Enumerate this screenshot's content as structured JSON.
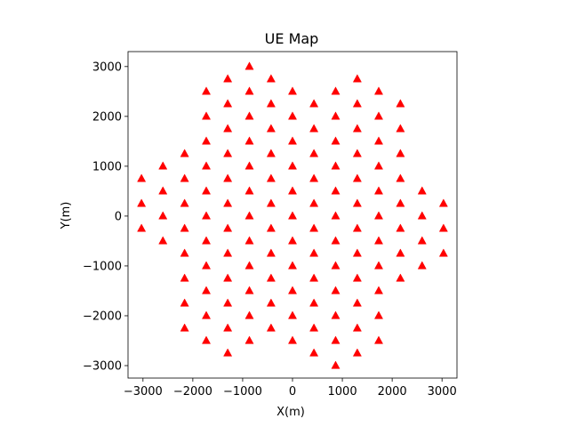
{
  "chart_data": {
    "type": "scatter",
    "title": "UE Map",
    "xlabel": "X(m)",
    "ylabel": "Y(m)",
    "xlim": [
      -3300,
      3300
    ],
    "ylim": [
      -3250,
      3300
    ],
    "xticks": [
      -3000,
      -2000,
      -1000,
      0,
      1000,
      2000,
      3000
    ],
    "xtick_labels": [
      "−3000",
      "−2000",
      "−1000",
      "0",
      "1000",
      "2000",
      "3000"
    ],
    "yticks": [
      -3000,
      -2000,
      -1000,
      0,
      1000,
      2000,
      3000
    ],
    "ytick_labels": [
      "−3000",
      "−2000",
      "−1000",
      "0",
      "1000",
      "2000",
      "3000"
    ],
    "grid": false,
    "marker": "triangle-up",
    "marker_color": "#ff0000",
    "series": [
      {
        "points": [
          [
            -3030,
            750
          ],
          [
            -3030,
            250
          ],
          [
            -3030,
            -250
          ],
          [
            -2600,
            1000
          ],
          [
            -2600,
            500
          ],
          [
            -2600,
            0
          ],
          [
            -2600,
            -500
          ],
          [
            -2165,
            1250
          ],
          [
            -2165,
            750
          ],
          [
            -2165,
            250
          ],
          [
            -2165,
            -250
          ],
          [
            -2165,
            -750
          ],
          [
            -2165,
            -1250
          ],
          [
            -2165,
            -1750
          ],
          [
            -2165,
            -2250
          ],
          [
            -1730,
            2500
          ],
          [
            -1730,
            2000
          ],
          [
            -1730,
            1500
          ],
          [
            -1730,
            1000
          ],
          [
            -1730,
            500
          ],
          [
            -1730,
            0
          ],
          [
            -1730,
            -500
          ],
          [
            -1730,
            -1000
          ],
          [
            -1730,
            -1500
          ],
          [
            -1730,
            -2000
          ],
          [
            -1730,
            -2500
          ],
          [
            -1300,
            2750
          ],
          [
            -1300,
            2250
          ],
          [
            -1300,
            1750
          ],
          [
            -1300,
            1250
          ],
          [
            -1300,
            750
          ],
          [
            -1300,
            250
          ],
          [
            -1300,
            -250
          ],
          [
            -1300,
            -750
          ],
          [
            -1300,
            -1250
          ],
          [
            -1300,
            -1750
          ],
          [
            -1300,
            -2250
          ],
          [
            -1300,
            -2750
          ],
          [
            -865,
            3000
          ],
          [
            -865,
            2500
          ],
          [
            -865,
            2000
          ],
          [
            -865,
            1500
          ],
          [
            -865,
            1000
          ],
          [
            -865,
            500
          ],
          [
            -865,
            0
          ],
          [
            -865,
            -500
          ],
          [
            -865,
            -1000
          ],
          [
            -865,
            -1500
          ],
          [
            -865,
            -2000
          ],
          [
            -865,
            -2500
          ],
          [
            -430,
            2750
          ],
          [
            -430,
            2250
          ],
          [
            -430,
            1750
          ],
          [
            -430,
            1250
          ],
          [
            -430,
            750
          ],
          [
            -430,
            250
          ],
          [
            -430,
            -250
          ],
          [
            -430,
            -750
          ],
          [
            -430,
            -1250
          ],
          [
            -430,
            -1750
          ],
          [
            -430,
            -2250
          ],
          [
            0,
            2500
          ],
          [
            0,
            2000
          ],
          [
            0,
            1500
          ],
          [
            0,
            1000
          ],
          [
            0,
            500
          ],
          [
            0,
            0
          ],
          [
            0,
            -500
          ],
          [
            0,
            -1000
          ],
          [
            0,
            -1500
          ],
          [
            0,
            -2000
          ],
          [
            0,
            -2500
          ],
          [
            430,
            2250
          ],
          [
            430,
            1750
          ],
          [
            430,
            1250
          ],
          [
            430,
            750
          ],
          [
            430,
            250
          ],
          [
            430,
            -250
          ],
          [
            430,
            -750
          ],
          [
            430,
            -1250
          ],
          [
            430,
            -1750
          ],
          [
            430,
            -2250
          ],
          [
            430,
            -2750
          ],
          [
            865,
            2500
          ],
          [
            865,
            2000
          ],
          [
            865,
            1500
          ],
          [
            865,
            1000
          ],
          [
            865,
            500
          ],
          [
            865,
            0
          ],
          [
            865,
            -500
          ],
          [
            865,
            -1000
          ],
          [
            865,
            -1500
          ],
          [
            865,
            -2000
          ],
          [
            865,
            -2500
          ],
          [
            865,
            -3000
          ],
          [
            1300,
            2750
          ],
          [
            1300,
            2250
          ],
          [
            1300,
            1750
          ],
          [
            1300,
            1250
          ],
          [
            1300,
            750
          ],
          [
            1300,
            250
          ],
          [
            1300,
            -250
          ],
          [
            1300,
            -750
          ],
          [
            1300,
            -1250
          ],
          [
            1300,
            -1750
          ],
          [
            1300,
            -2250
          ],
          [
            1300,
            -2750
          ],
          [
            1730,
            2500
          ],
          [
            1730,
            2000
          ],
          [
            1730,
            1500
          ],
          [
            1730,
            1000
          ],
          [
            1730,
            500
          ],
          [
            1730,
            0
          ],
          [
            1730,
            -500
          ],
          [
            1730,
            -1000
          ],
          [
            1730,
            -1500
          ],
          [
            1730,
            -2000
          ],
          [
            1730,
            -2500
          ],
          [
            2165,
            2250
          ],
          [
            2165,
            1750
          ],
          [
            2165,
            1250
          ],
          [
            2165,
            750
          ],
          [
            2165,
            250
          ],
          [
            2165,
            -250
          ],
          [
            2165,
            -750
          ],
          [
            2165,
            -1250
          ],
          [
            2600,
            500
          ],
          [
            2600,
            0
          ],
          [
            2600,
            -500
          ],
          [
            2600,
            -1000
          ],
          [
            3030,
            250
          ],
          [
            3030,
            -250
          ],
          [
            3030,
            -750
          ]
        ]
      }
    ]
  }
}
